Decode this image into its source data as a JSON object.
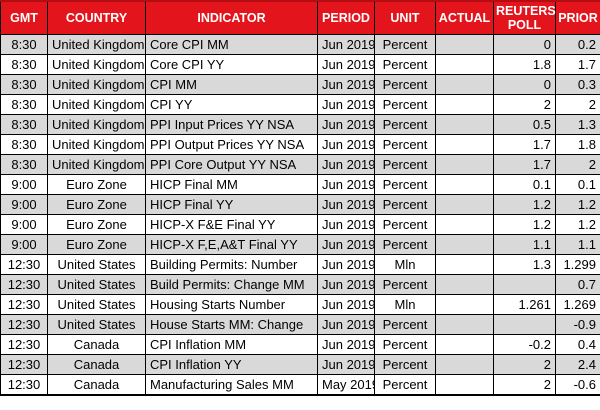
{
  "colors": {
    "header_bg": "#e3141c",
    "header_text": "#ffffff",
    "row_alt_bg": "#d9d9d9",
    "row_bg": "#ffffff",
    "border": "#000000",
    "top_accent": "#b30d12"
  },
  "table": {
    "headers": [
      "GMT",
      "COUNTRY",
      "INDICATOR",
      "PERIOD",
      "UNIT",
      "ACTUAL",
      "REUTERS POLL",
      "PRIOR"
    ],
    "rows": [
      {
        "gmt": "8:30",
        "country": "United Kingdom",
        "indicator": "Core CPI MM",
        "period": "Jun 2019",
        "unit": "Percent",
        "actual": "",
        "poll": "0",
        "prior": "0.2"
      },
      {
        "gmt": "8:30",
        "country": "United Kingdom",
        "indicator": "Core CPI YY",
        "period": "Jun 2019",
        "unit": "Percent",
        "actual": "",
        "poll": "1.8",
        "prior": "1.7"
      },
      {
        "gmt": "8:30",
        "country": "United Kingdom",
        "indicator": "CPI MM",
        "period": "Jun 2019",
        "unit": "Percent",
        "actual": "",
        "poll": "0",
        "prior": "0.3"
      },
      {
        "gmt": "8:30",
        "country": "United Kingdom",
        "indicator": "CPI YY",
        "period": "Jun 2019",
        "unit": "Percent",
        "actual": "",
        "poll": "2",
        "prior": "2"
      },
      {
        "gmt": "8:30",
        "country": "United Kingdom",
        "indicator": "PPI Input Prices YY NSA",
        "period": "Jun 2019",
        "unit": "Percent",
        "actual": "",
        "poll": "0.5",
        "prior": "1.3"
      },
      {
        "gmt": "8:30",
        "country": "United Kingdom",
        "indicator": "PPI Output Prices YY NSA",
        "period": "Jun 2019",
        "unit": "Percent",
        "actual": "",
        "poll": "1.7",
        "prior": "1.8"
      },
      {
        "gmt": "8:30",
        "country": "United Kingdom",
        "indicator": "PPI Core Output YY NSA",
        "period": "Jun 2019",
        "unit": "Percent",
        "actual": "",
        "poll": "1.7",
        "prior": "2"
      },
      {
        "gmt": "9:00",
        "country": "Euro Zone",
        "indicator": "HICP Final MM",
        "period": "Jun 2019",
        "unit": "Percent",
        "actual": "",
        "poll": "0.1",
        "prior": "0.1"
      },
      {
        "gmt": "9:00",
        "country": "Euro Zone",
        "indicator": "HICP Final YY",
        "period": "Jun 2019",
        "unit": "Percent",
        "actual": "",
        "poll": "1.2",
        "prior": "1.2"
      },
      {
        "gmt": "9:00",
        "country": "Euro Zone",
        "indicator": "HICP-X F&E Final YY",
        "period": "Jun 2019",
        "unit": "Percent",
        "actual": "",
        "poll": "1.2",
        "prior": "1.2"
      },
      {
        "gmt": "9:00",
        "country": "Euro Zone",
        "indicator": "HICP-X F,E,A&T Final YY",
        "period": "Jun 2019",
        "unit": "Percent",
        "actual": "",
        "poll": "1.1",
        "prior": "1.1"
      },
      {
        "gmt": "12:30",
        "country": "United States",
        "indicator": "Building Permits: Number",
        "period": "Jun 2019",
        "unit": "Mln",
        "actual": "",
        "poll": "1.3",
        "prior": "1.299"
      },
      {
        "gmt": "12:30",
        "country": "United States",
        "indicator": "Build Permits: Change MM",
        "period": "Jun 2019",
        "unit": "Percent",
        "actual": "",
        "poll": "",
        "prior": "0.7"
      },
      {
        "gmt": "12:30",
        "country": "United States",
        "indicator": "Housing Starts Number",
        "period": "Jun 2019",
        "unit": "Mln",
        "actual": "",
        "poll": "1.261",
        "prior": "1.269"
      },
      {
        "gmt": "12:30",
        "country": "United States",
        "indicator": "House Starts MM: Change",
        "period": "Jun 2019",
        "unit": "Percent",
        "actual": "",
        "poll": "",
        "prior": "-0.9"
      },
      {
        "gmt": "12:30",
        "country": "Canada",
        "indicator": "CPI Inflation MM",
        "period": "Jun 2019",
        "unit": "Percent",
        "actual": "",
        "poll": "-0.2",
        "prior": "0.4"
      },
      {
        "gmt": "12:30",
        "country": "Canada",
        "indicator": "CPI Inflation YY",
        "period": "Jun 2019",
        "unit": "Percent",
        "actual": "",
        "poll": "2",
        "prior": "2.4"
      },
      {
        "gmt": "12:30",
        "country": "Canada",
        "indicator": "Manufacturing Sales MM",
        "period": "May 2019",
        "unit": "Percent",
        "actual": "",
        "poll": "2",
        "prior": "-0.6"
      }
    ]
  }
}
